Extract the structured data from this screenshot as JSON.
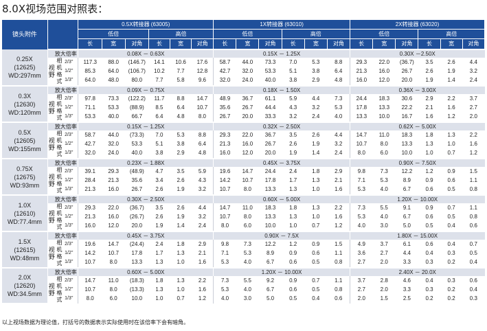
{
  "title": "8.0X视场范围对照表：",
  "header": {
    "lens_col": "镜头附件",
    "groups": [
      "0.5X转接器 (63005)",
      "1X转接器 (63010)",
      "2X转接器 (63020)"
    ],
    "low": "低倍",
    "high": "高倍",
    "dims": [
      "长",
      "宽",
      "对角"
    ]
  },
  "mag_label": "放大倍率",
  "format_label": [
    "相",
    "机",
    "格",
    "式"
  ],
  "sensor_label": [
    "视",
    "野"
  ],
  "sizes": [
    "2/3''",
    "1/2''",
    "1/3''"
  ],
  "lenses": [
    {
      "name": "0.25X",
      "code": "(12625)",
      "wd": "WD:297mm",
      "mags": [
        "0.08X － 0.63X",
        "0.15X － 1.25X",
        "0.30X －2.50X"
      ],
      "rows": [
        [
          "117.3",
          "88.0",
          "(146.7)",
          "14.1",
          "10.6",
          "17.6",
          "58.7",
          "44.0",
          "73.3",
          "7.0",
          "5.3",
          "8.8",
          "29.3",
          "22.0",
          "(36.7)",
          "3.5",
          "2.6",
          "4.4"
        ],
        [
          "85.3",
          "64.0",
          "(106.7)",
          "10.2",
          "7.7",
          "12.8",
          "42.7",
          "32.0",
          "53.3",
          "5.1",
          "3.8",
          "6.4",
          "21.3",
          "16.0",
          "26.7",
          "2.6",
          "1.9",
          "3.2"
        ],
        [
          "64.0",
          "48.0",
          "80.0",
          "7.7",
          "5.8",
          "9.6",
          "32.0",
          "24.0",
          "40.0",
          "3.8",
          "2.9",
          "4.8",
          "16.0",
          "12.0",
          "20.0",
          "1.9",
          "1.4",
          "2.4"
        ]
      ]
    },
    {
      "name": "0.3X",
      "code": "(12630)",
      "wd": "WD:120mm",
      "mags": [
        "0.09X － 0.75X",
        "0.18X － 1.50X",
        "0.36X － 3.00X"
      ],
      "rows": [
        [
          "97.8",
          "73.3",
          "(122.2)",
          "11.7",
          "8.8",
          "14.7",
          "48.9",
          "36.7",
          "61.1",
          "5.9",
          "4.4",
          "7.3",
          "24.4",
          "18.3",
          "30.6",
          "2.9",
          "2.2",
          "3.7"
        ],
        [
          "71.1",
          "53.3",
          "(88.9)",
          "8.5",
          "6.4",
          "10.7",
          "35.6",
          "26.7",
          "44.4",
          "4.3",
          "3.2",
          "5.3",
          "17.8",
          "13.3",
          "22.2",
          "2.1",
          "1.6",
          "2.7"
        ],
        [
          "53.3",
          "40.0",
          "66.7",
          "6.4",
          "4.8",
          "8.0",
          "26.7",
          "20.0",
          "33.3",
          "3.2",
          "2.4",
          "4.0",
          "13.3",
          "10.0",
          "16.7",
          "1.6",
          "1.2",
          "2.0"
        ]
      ]
    },
    {
      "name": "0.5X",
      "code": "(12605)",
      "wd": "WD:155mm",
      "mags": [
        "0.15X － 1.25X",
        "0.32X － 2.50X",
        "0.62X － 5.00X"
      ],
      "rows": [
        [
          "58.7",
          "44.0",
          "(73.3)",
          "7.0",
          "5.3",
          "8.8",
          "29.3",
          "22.0",
          "36.7",
          "3.5",
          "2.6",
          "4.4",
          "14.7",
          "11.0",
          "18.3",
          "1.8",
          "1.3",
          "2.2"
        ],
        [
          "42.7",
          "32.0",
          "53.3",
          "5.1",
          "3.8",
          "6.4",
          "21.3",
          "16.0",
          "26.7",
          "2.6",
          "1.9",
          "3.2",
          "10.7",
          "8.0",
          "13.3",
          "1.3",
          "1.0",
          "1.6"
        ],
        [
          "32.0",
          "24.0",
          "40.0",
          "3.8",
          "2.9",
          "4.8",
          "16.0",
          "12.0",
          "20.0",
          "1.9",
          "1.4",
          "2.4",
          "8.0",
          "6.0",
          "10.0",
          "1.0",
          "0.7",
          "1.2"
        ]
      ]
    },
    {
      "name": "0.75X",
      "code": "(12675)",
      "wd": "WD:93mm",
      "mags": [
        "0.23X － 1.88X",
        "0.45X － 3.75X",
        "0.90X － 7.50X"
      ],
      "rows": [
        [
          "39.1",
          "29.3",
          "(48.9)",
          "4.7",
          "3.5",
          "5.9",
          "19.6",
          "14.7",
          "24.4",
          "2.4",
          "1.8",
          "2.9",
          "9.8",
          "7.3",
          "12.2",
          "1.2",
          "0.9",
          "1.5"
        ],
        [
          "28.4",
          "21.3",
          "35.6",
          "3.4",
          "2.6",
          "4.3",
          "14.2",
          "10.7",
          "17.8",
          "1.7",
          "1.3",
          "2.1",
          "7.1",
          "5.3",
          "8.9",
          "0.9",
          "0.6",
          "1.1"
        ],
        [
          "21.3",
          "16.0",
          "26.7",
          "2.6",
          "1.9",
          "3.2",
          "10.7",
          "8.0",
          "13.3",
          "1.3",
          "1.0",
          "1.6",
          "5.3",
          "4.0",
          "6.7",
          "0.6",
          "0.5",
          "0.8"
        ]
      ]
    },
    {
      "name": "1.0X",
      "code": "(12610)",
      "wd": "WD:77.4mm",
      "mags": [
        "0.30X － 2.50X",
        "0.60X － 5.00X",
        "1.20X － 10.00X"
      ],
      "rows": [
        [
          "29.3",
          "22.0",
          "(36.7)",
          "3.5",
          "2.6",
          "4.4",
          "14.7",
          "11.0",
          "18.3",
          "1.8",
          "1.3",
          "2.2",
          "7.3",
          "5.5",
          "9.1",
          "0.9",
          "0.7",
          "1.1"
        ],
        [
          "21.3",
          "16.0",
          "(26.7)",
          "2.6",
          "1.9",
          "3.2",
          "10.7",
          "8.0",
          "13.3",
          "1.3",
          "1.0",
          "1.6",
          "5.3",
          "4.0",
          "6.7",
          "0.6",
          "0.5",
          "0.8"
        ],
        [
          "16.0",
          "12.0",
          "20.0",
          "1.9",
          "1.4",
          "2.4",
          "8.0",
          "6.0",
          "10.0",
          "1.0",
          "0.7",
          "1.2",
          "4.0",
          "3.0",
          "5.0",
          "0.5",
          "0.4",
          "0.6"
        ]
      ]
    },
    {
      "name": "1.5X",
      "code": "(12615)",
      "wd": "WD:48mm",
      "mags": [
        "0.45X － 3.75X",
        "0.90X － 7.5X",
        "1.80X － 15.00X"
      ],
      "rows": [
        [
          "19.6",
          "14.7",
          "(24.4)",
          "2.4",
          "1.8",
          "2.9",
          "9.8",
          "7.3",
          "12.2",
          "1.2",
          "0.9",
          "1.5",
          "4.9",
          "3.7",
          "6.1",
          "0.6",
          "0.4",
          "0.7"
        ],
        [
          "14.2",
          "10.7",
          "17.8",
          "1.7",
          "1.3",
          "2.1",
          "7.1",
          "5.3",
          "8.9",
          "0.9",
          "0.6",
          "1.1",
          "3.6",
          "2.7",
          "4.4",
          "0.4",
          "0.3",
          "0.5"
        ],
        [
          "10.7",
          "8.0",
          "13.3",
          "1.3",
          "1.0",
          "1.6",
          "5.3",
          "4.0",
          "6.7",
          "0.6",
          "0.5",
          "0.8",
          "2.7",
          "2.0",
          "3.3",
          "0.3",
          "0.2",
          "0.4"
        ]
      ]
    },
    {
      "name": "2.0X",
      "code": "(12620)",
      "wd": "WD:34.5mm",
      "mags": [
        "0.60X － 5.00X",
        "1.20X － 10.00X",
        "2.40X － 20.0X"
      ],
      "rows": [
        [
          "14.7",
          "11.0",
          "(18.3)",
          "1.8",
          "1.3",
          "2.2",
          "7.3",
          "5.5",
          "9.2",
          "0.9",
          "0.7",
          "1.1",
          "3.7",
          "2.8",
          "4.6",
          "0.4",
          "0.3",
          "0.6"
        ],
        [
          "10.7",
          "8.0",
          "(13.3)",
          "1.3",
          "1.0",
          "1.6",
          "5.3",
          "4.0",
          "6.7",
          "0.6",
          "0.5",
          "0.8",
          "2.7",
          "2.0",
          "3.3",
          "0.3",
          "0.2",
          "0.4"
        ],
        [
          "8.0",
          "6.0",
          "10.0",
          "1.0",
          "0.7",
          "1.2",
          "4.0",
          "3.0",
          "5.0",
          "0.5",
          "0.4",
          "0.6",
          "2.0",
          "1.5",
          "2.5",
          "0.2",
          "0.2",
          "0.3"
        ]
      ]
    }
  ],
  "footnote": "以上视场数据为理论值，打括号的数据表示实际使用时在该倍率下会有暗角。",
  "colors": {
    "header_bg": "#1f4f9a",
    "row_bg": "#dde1ea",
    "header_text": "#ffffff"
  }
}
